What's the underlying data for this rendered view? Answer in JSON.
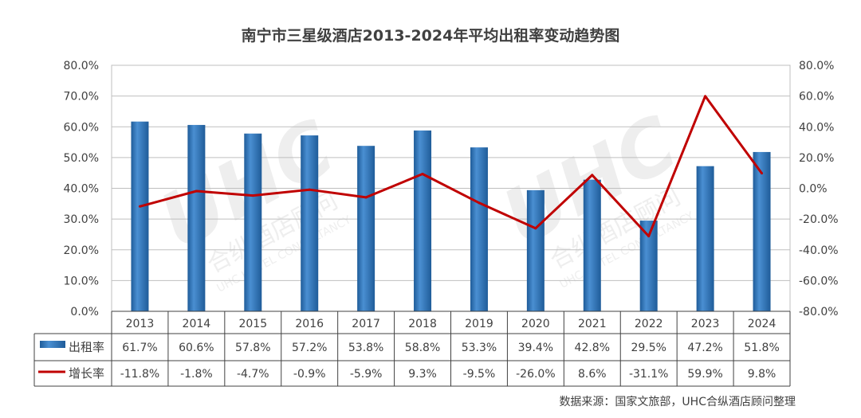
{
  "chart_data": {
    "type": "bar",
    "title": "南宁市三星级酒店2013-2024年平均出租率变动趋势图",
    "categories": [
      "2013",
      "2014",
      "2015",
      "2016",
      "2017",
      "2018",
      "2019",
      "2020",
      "2021",
      "2022",
      "2023",
      "2024"
    ],
    "series": [
      {
        "name": "出租率",
        "type": "bar",
        "axis": "left",
        "values": [
          61.7,
          60.6,
          57.8,
          57.2,
          53.8,
          58.8,
          53.3,
          39.4,
          42.8,
          29.5,
          47.2,
          51.8
        ],
        "labels": [
          "61.7%",
          "60.6%",
          "57.8%",
          "57.2%",
          "53.8%",
          "58.8%",
          "53.3%",
          "39.4%",
          "42.8%",
          "29.5%",
          "47.2%",
          "51.8%"
        ]
      },
      {
        "name": "增长率",
        "type": "line",
        "axis": "right",
        "values": [
          -11.8,
          -1.8,
          -4.7,
          -0.9,
          -5.9,
          9.3,
          -9.5,
          -26.0,
          8.6,
          -31.1,
          59.9,
          9.8
        ],
        "labels": [
          "-11.8%",
          "-1.8%",
          "-4.7%",
          "-0.9%",
          "-5.9%",
          "9.3%",
          "-9.5%",
          "-26.0%",
          "8.6%",
          "-31.1%",
          "59.9%",
          "9.8%"
        ]
      }
    ],
    "y_left": {
      "lim": [
        0,
        80
      ],
      "ticks": [
        "0.0%",
        "10.0%",
        "20.0%",
        "30.0%",
        "40.0%",
        "50.0%",
        "60.0%",
        "70.0%",
        "80.0%"
      ]
    },
    "y_right": {
      "lim": [
        -80,
        80
      ],
      "ticks": [
        "-80.0%",
        "-60.0%",
        "-40.0%",
        "-20.0%",
        "0.0%",
        "20.0%",
        "40.0%",
        "60.0%",
        "80.0%"
      ]
    },
    "grid": true,
    "legend": "data-table",
    "colors": {
      "bar": "#2E75B6",
      "line": "#C00000",
      "grid": "#BFBFBF",
      "text": "#404040"
    }
  },
  "watermark": {
    "logo": "UHC",
    "text_cn": "合纵酒店顾问",
    "text_en": "UHC HOTEL CONSULTANCY"
  },
  "source": "数据来源：国家文旅部，UHC合纵酒店顾问整理"
}
